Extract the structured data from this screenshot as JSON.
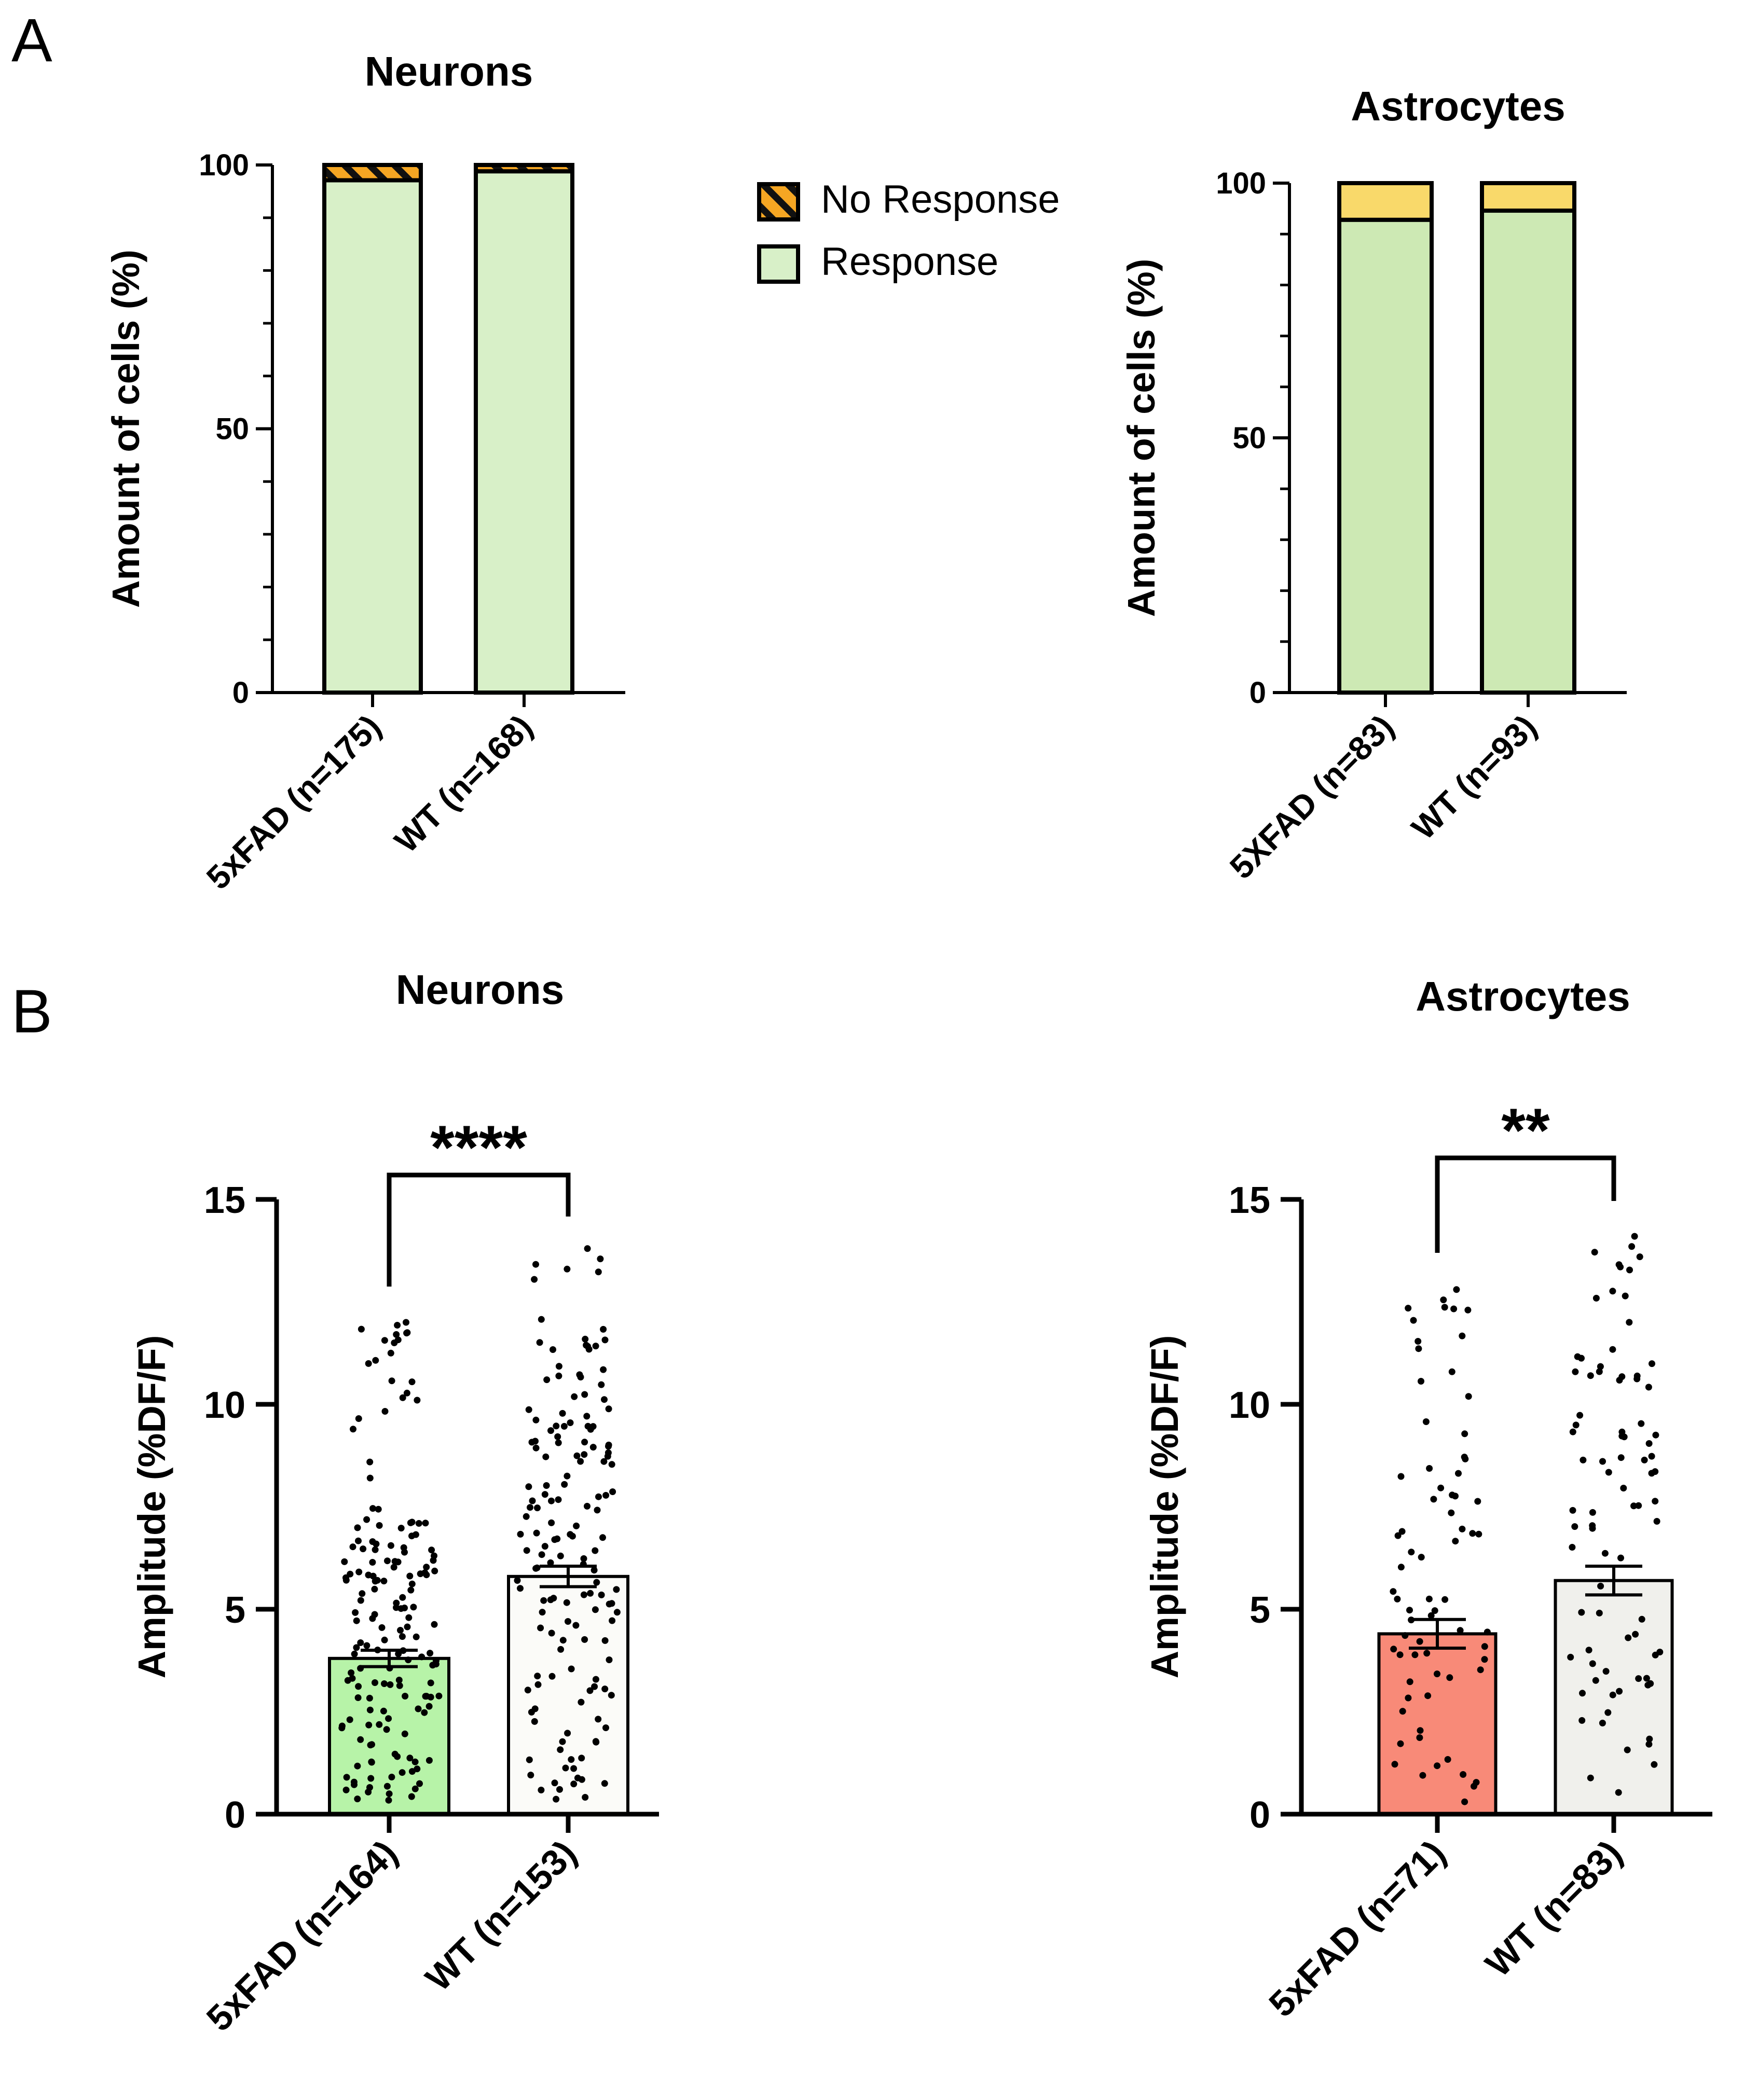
{
  "panel_labels": {
    "a": "A",
    "b": "B"
  },
  "legend": {
    "items": [
      {
        "label": "No Response",
        "pattern": "hatched",
        "color": "#f5a623"
      },
      {
        "label": "Response",
        "pattern": "solid",
        "color": "#d8f0c8"
      }
    ]
  },
  "chart_data": [
    {
      "id": "a_neurons",
      "type": "bar",
      "stacked": true,
      "title": "Neurons",
      "ylabel": "Amount of cells (%)",
      "xlabel": "",
      "ylim": [
        0,
        100
      ],
      "yticks": [
        0,
        50,
        100
      ],
      "categories": [
        "5xFAD (n=175)",
        "WT (n=168)"
      ],
      "series": [
        {
          "name": "Response",
          "values": [
            97.1,
            98.8
          ],
          "color": "#d8f0c8",
          "pattern": "solid"
        },
        {
          "name": "No Response",
          "values": [
            2.9,
            1.2
          ],
          "color": "#f5a623",
          "pattern": "hatched"
        }
      ]
    },
    {
      "id": "a_astrocytes",
      "type": "bar",
      "stacked": true,
      "title": "Astrocytes",
      "ylabel": "Amount of cells (%)",
      "xlabel": "",
      "ylim": [
        0,
        100
      ],
      "yticks": [
        0,
        50,
        100
      ],
      "categories": [
        "5XFAD (n=83)",
        "WT (n=93)"
      ],
      "series": [
        {
          "name": "Response",
          "values": [
            92.8,
            94.6
          ],
          "color": "#cde9b4",
          "pattern": "solid"
        },
        {
          "name": "No Response",
          "values": [
            7.2,
            5.4
          ],
          "color": "#f9d96a",
          "pattern": "solid"
        }
      ]
    },
    {
      "id": "b_neurons",
      "type": "bar",
      "overlay": "scatter",
      "title": "Neurons",
      "ylabel": "Amplitude (%DF/F)",
      "xlabel": "",
      "ylim": [
        0,
        15
      ],
      "yticks": [
        0,
        5,
        10,
        15
      ],
      "categories": [
        "5xFAD (n=164)",
        "WT (n=153)"
      ],
      "means": [
        3.8,
        5.8
      ],
      "sem": [
        0.2,
        0.25
      ],
      "colors": [
        "#b7f3a8",
        "#fbfbf8"
      ],
      "n_points": [
        164,
        153
      ],
      "points_max": [
        12.0,
        13.8
      ],
      "significance": "****"
    },
    {
      "id": "b_astrocytes",
      "type": "bar",
      "overlay": "scatter",
      "title": "Astrocytes",
      "ylabel": "Amplitude (%DF/F)",
      "xlabel": "",
      "ylim": [
        0,
        15
      ],
      "yticks": [
        0,
        5,
        10,
        15
      ],
      "categories": [
        "5xFAD (n=71)",
        "WT (n=83)"
      ],
      "means": [
        4.4,
        5.7
      ],
      "sem": [
        0.35,
        0.35
      ],
      "colors": [
        "#f88a78",
        "#f0f0ec"
      ],
      "n_points": [
        71,
        83
      ],
      "points_max": [
        12.8,
        14.1
      ],
      "significance": "**"
    }
  ]
}
